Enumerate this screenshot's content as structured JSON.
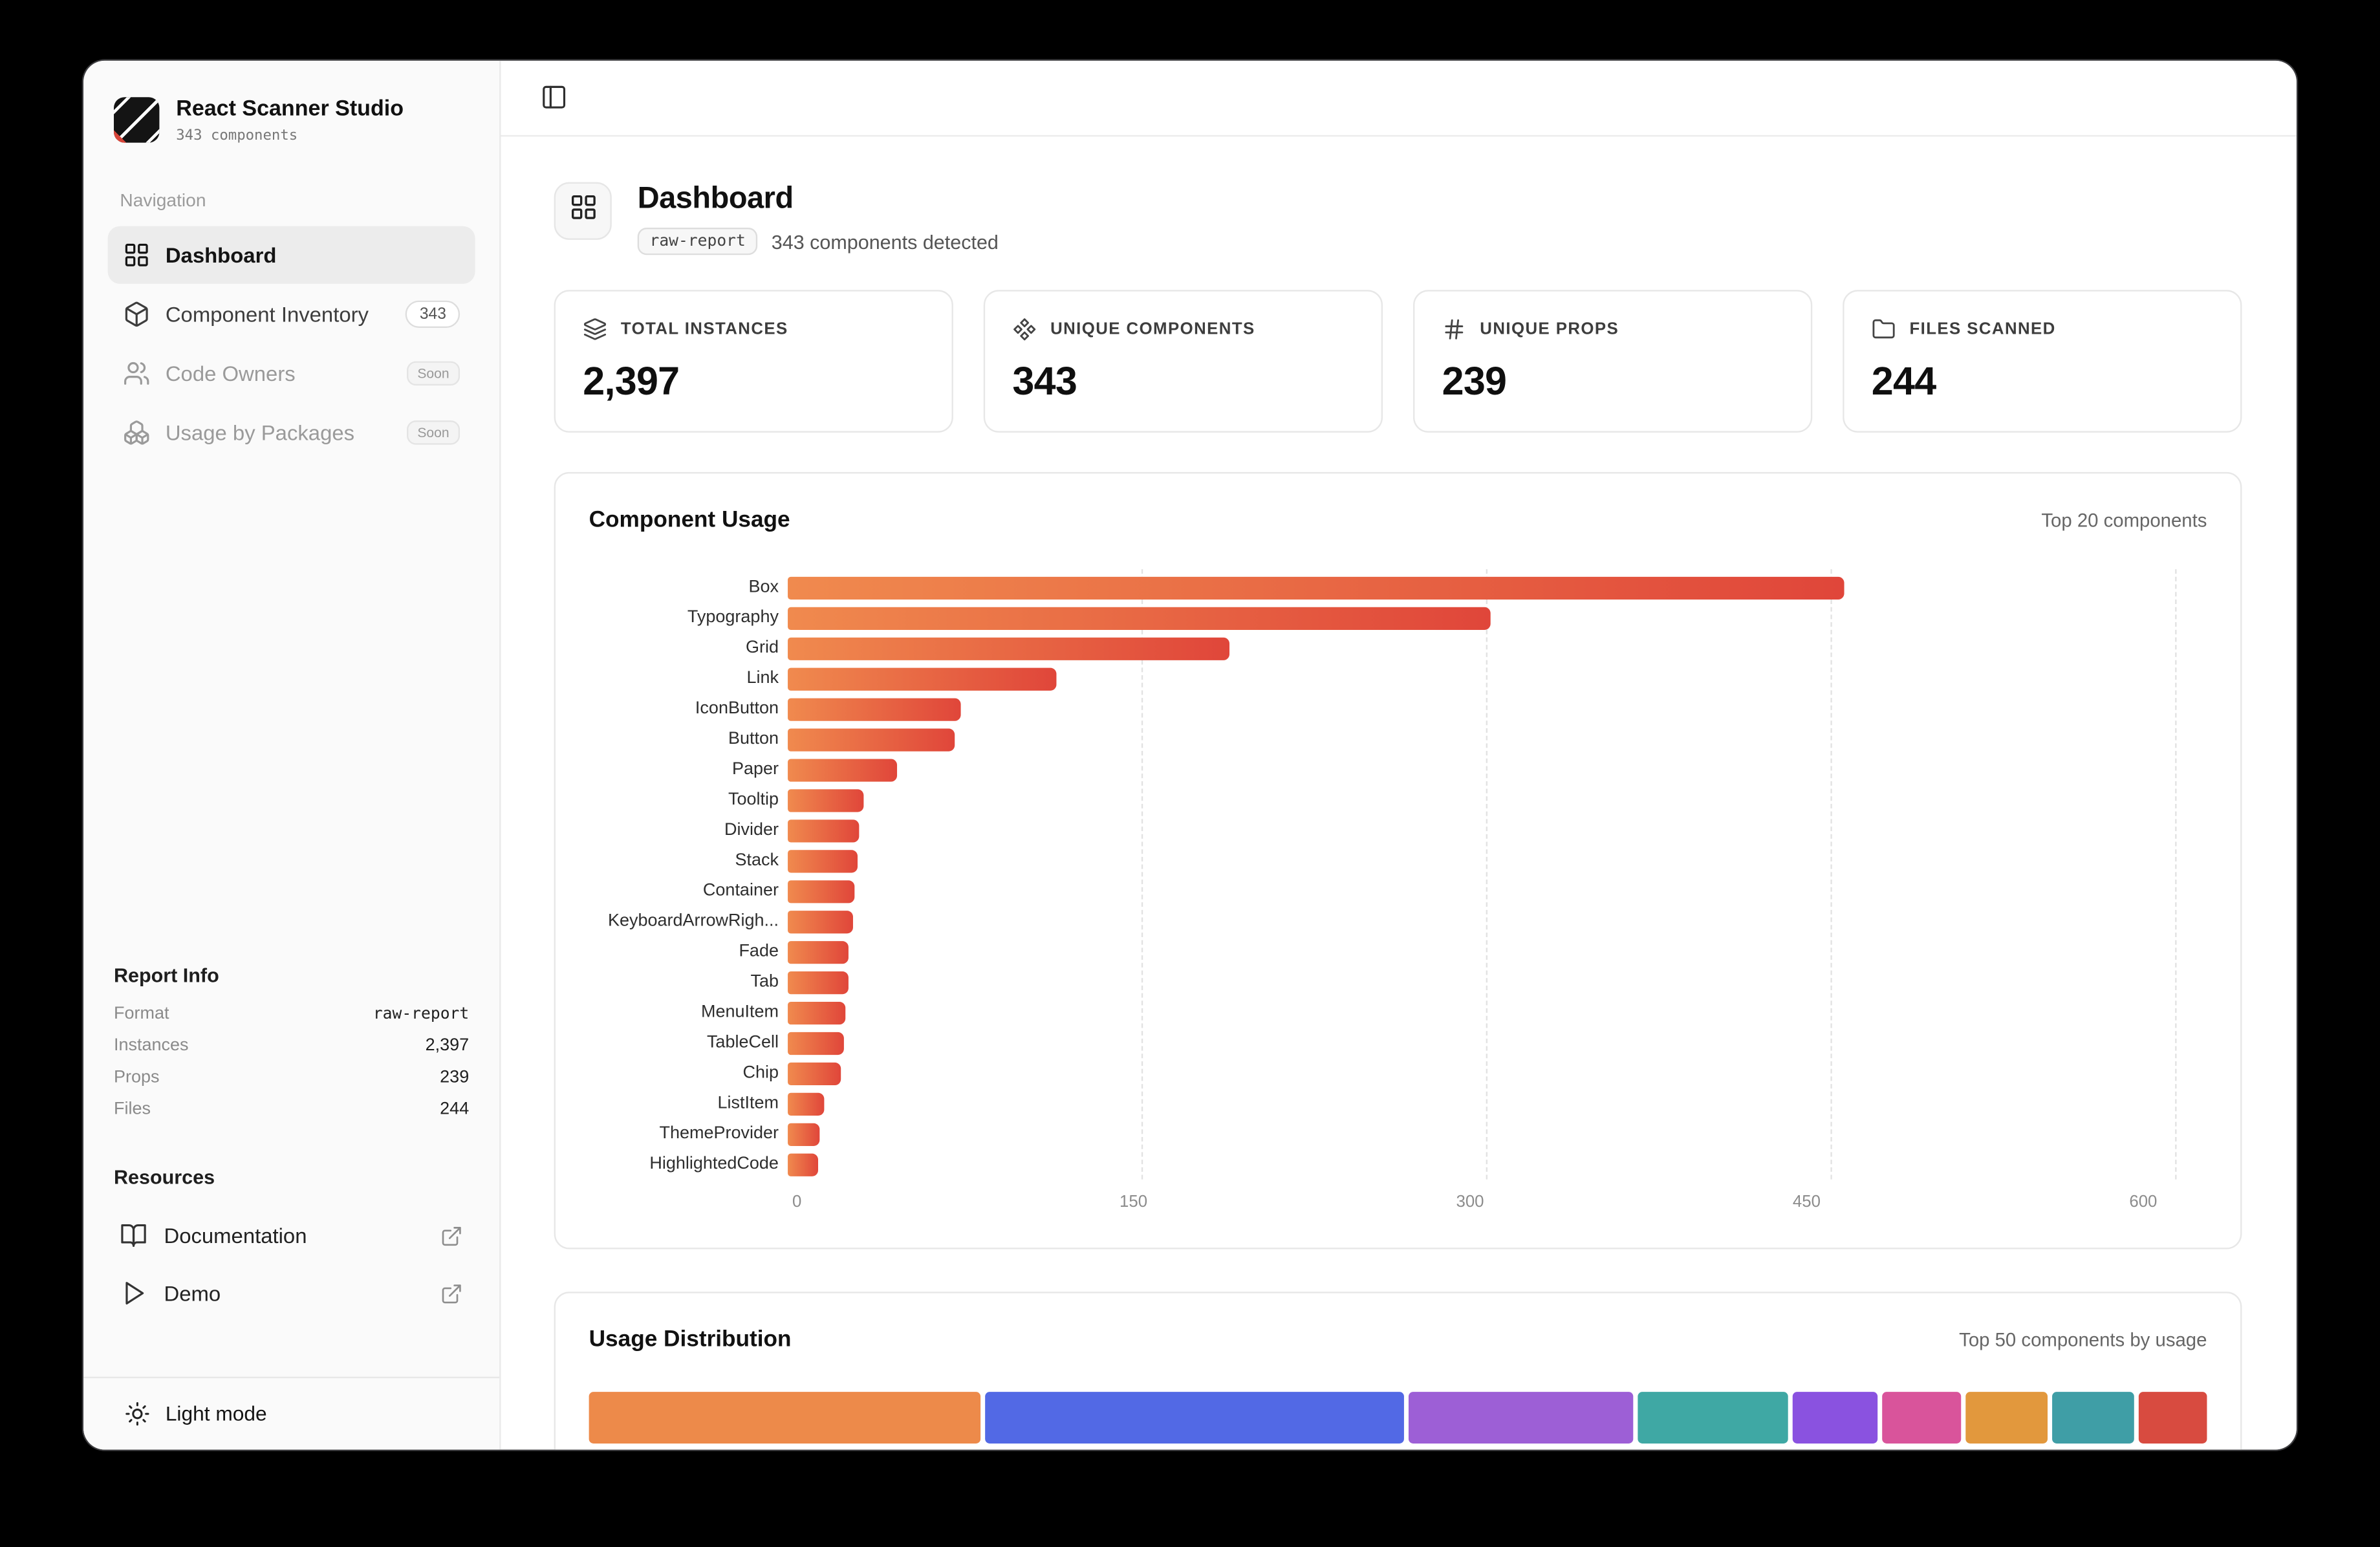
{
  "sidebar": {
    "app_name": "React Scanner Studio",
    "app_subtitle": "343 components",
    "nav_label": "Navigation",
    "items": [
      {
        "label": "Dashboard",
        "icon": "layout-grid",
        "active": true,
        "badge": null
      },
      {
        "label": "Component Inventory",
        "icon": "package",
        "badge": "343",
        "badge_style": "pill"
      },
      {
        "label": "Code Owners",
        "icon": "users",
        "badge": "Soon",
        "badge_style": "soon",
        "disabled": true
      },
      {
        "label": "Usage by Packages",
        "icon": "boxes",
        "badge": "Soon",
        "badge_style": "soon",
        "disabled": true
      }
    ],
    "report_info": {
      "title": "Report Info",
      "rows": [
        {
          "label": "Format",
          "value": "raw-report",
          "mono": true
        },
        {
          "label": "Instances",
          "value": "2,397"
        },
        {
          "label": "Props",
          "value": "239"
        },
        {
          "label": "Files",
          "value": "244"
        }
      ]
    },
    "resources": {
      "title": "Resources",
      "items": [
        {
          "label": "Documentation",
          "icon": "book-open"
        },
        {
          "label": "Demo",
          "icon": "play"
        }
      ]
    },
    "theme_toggle": "Light mode"
  },
  "header": {
    "title": "Dashboard",
    "badge": "raw-report",
    "subtitle": "343 components detected"
  },
  "stats": [
    {
      "label": "TOTAL INSTANCES",
      "value": "2,397",
      "icon": "layers"
    },
    {
      "label": "UNIQUE COMPONENTS",
      "value": "343",
      "icon": "component"
    },
    {
      "label": "UNIQUE PROPS",
      "value": "239",
      "icon": "hash"
    },
    {
      "label": "FILES SCANNED",
      "value": "244",
      "icon": "folder"
    }
  ],
  "chart_data": [
    {
      "type": "bar",
      "orientation": "horizontal",
      "title": "Component Usage",
      "subtitle": "Top 20 components",
      "categories": [
        "Box",
        "Typography",
        "Grid",
        "Link",
        "IconButton",
        "Button",
        "Paper",
        "Tooltip",
        "Divider",
        "Stack",
        "Container",
        "KeyboardArrowRigh...",
        "Fade",
        "Tab",
        "MenuItem",
        "TableCell",
        "Chip",
        "ListItem",
        "ThemeProvider",
        "HighlightedCode"
      ],
      "values": [
        457,
        304,
        191,
        116,
        75,
        72,
        47,
        33,
        31,
        30,
        29,
        28,
        26,
        26,
        25,
        24,
        23,
        16,
        14,
        13
      ],
      "xlim": [
        0,
        600
      ],
      "xticks": [
        0,
        150,
        300,
        450,
        600
      ],
      "grid": true,
      "bar_gradient": [
        "#f08a4e",
        "#e0463a"
      ]
    },
    {
      "type": "stacked-bar",
      "title": "Usage Distribution",
      "subtitle": "Top 50 components by usage",
      "segments": [
        {
          "color": "#ed8a4a",
          "pct": 24.8
        },
        {
          "color": "#5269e5",
          "pct": 26.5
        },
        {
          "color": "#9d5fd6",
          "pct": 14.2
        },
        {
          "color": "#3fa8a4",
          "pct": 9.5
        },
        {
          "color": "#8a52e0",
          "pct": 5.4
        },
        {
          "color": "#d9549b",
          "pct": 5.0
        },
        {
          "color": "#e2983d",
          "pct": 5.2
        },
        {
          "color": "#3f9ea6",
          "pct": 5.2
        },
        {
          "color": "#d84b40",
          "pct": 4.3
        }
      ]
    }
  ]
}
